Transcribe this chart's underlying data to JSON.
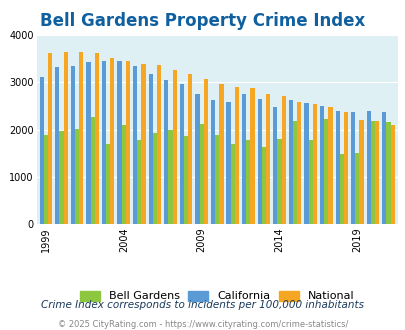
{
  "title": "Bell Gardens Property Crime Index",
  "title_color": "#1060a0",
  "subtitle": "Crime Index corresponds to incidents per 100,000 inhabitants",
  "footer": "© 2025 CityRating.com - https://www.cityrating.com/crime-statistics/",
  "years": [
    1999,
    2000,
    2001,
    2002,
    2003,
    2004,
    2005,
    2006,
    2007,
    2008,
    2009,
    2010,
    2011,
    2012,
    2013,
    2014,
    2015,
    2016,
    2017,
    2018,
    2019,
    2020,
    2021
  ],
  "bell_gardens": [
    1880,
    1970,
    2020,
    2270,
    1700,
    2090,
    1780,
    1930,
    2000,
    1870,
    2110,
    1880,
    1700,
    1780,
    1630,
    1800,
    2170,
    1780,
    2230,
    1490,
    1510,
    2170,
    2150
  ],
  "california": [
    3100,
    3310,
    3340,
    3430,
    3440,
    3440,
    3330,
    3160,
    3040,
    2960,
    2750,
    2620,
    2570,
    2750,
    2640,
    2470,
    2620,
    2560,
    2490,
    2400,
    2370,
    2380,
    2360
  ],
  "national": [
    3620,
    3640,
    3640,
    3610,
    3500,
    3450,
    3380,
    3360,
    3250,
    3180,
    3060,
    2960,
    2900,
    2870,
    2740,
    2700,
    2590,
    2540,
    2480,
    2360,
    2200,
    2180,
    2090
  ],
  "bell_gardens_color": "#8dc63f",
  "california_color": "#5b9bd5",
  "national_color": "#f5a623",
  "plot_bg": "#dff0f5",
  "ylim": [
    0,
    4000
  ],
  "yticks": [
    0,
    1000,
    2000,
    3000,
    4000
  ],
  "xtick_years": [
    1999,
    2004,
    2009,
    2014,
    2019
  ],
  "bar_width": 0.27,
  "subtitle_color": "#1a3a5c",
  "footer_color": "#888888",
  "title_fontsize": 12,
  "axis_fontsize": 7,
  "legend_fontsize": 8,
  "subtitle_fontsize": 7.5,
  "footer_fontsize": 6
}
